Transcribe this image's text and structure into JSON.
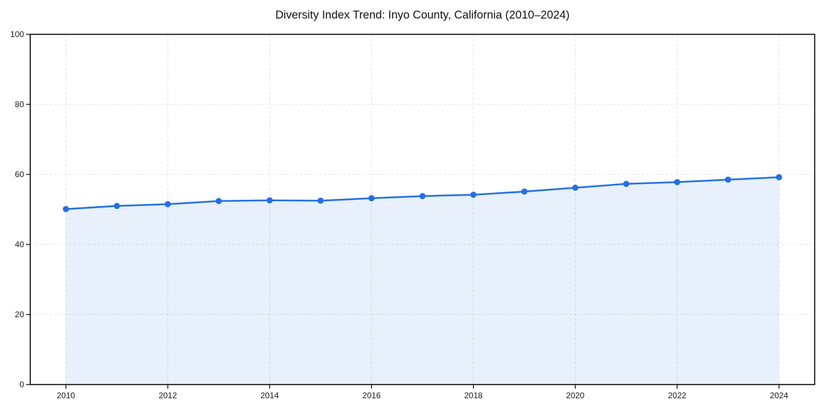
{
  "title": "Diversity Index Trend: Inyo County, California (2010–2024)",
  "chart_data": {
    "type": "line",
    "title": "Diversity Index Trend: Inyo County, California (2010–2024)",
    "x": [
      2010,
      2011,
      2012,
      2013,
      2014,
      2015,
      2016,
      2017,
      2018,
      2019,
      2020,
      2021,
      2022,
      2023,
      2024
    ],
    "series": [
      {
        "name": "Diversity Index",
        "values": [
          50.1,
          51.0,
          51.5,
          52.4,
          52.6,
          52.5,
          53.2,
          53.8,
          54.2,
          55.1,
          56.2,
          57.3,
          57.8,
          58.5,
          59.2
        ]
      }
    ],
    "xlabel": "",
    "ylabel": "",
    "xlim": [
      2009.3,
      2024.7
    ],
    "ylim": [
      0,
      100
    ],
    "xticks": [
      2010,
      2012,
      2014,
      2016,
      2018,
      2020,
      2022,
      2024
    ],
    "yticks": [
      0,
      20,
      40,
      60,
      80,
      100
    ],
    "grid": "dashed-both",
    "legend": "none",
    "area_fill": true,
    "style": {
      "line_color": "#2270e3",
      "marker_color": "#2270e3",
      "fill_color": "rgba(34,112,227,0.10)",
      "grid_color": "#e3e3e3",
      "spine_color": "#111111",
      "tick_color": "#111111",
      "tick_label_color": "#1a1a1a",
      "title_color": "#111111",
      "background": "#ffffff"
    }
  }
}
